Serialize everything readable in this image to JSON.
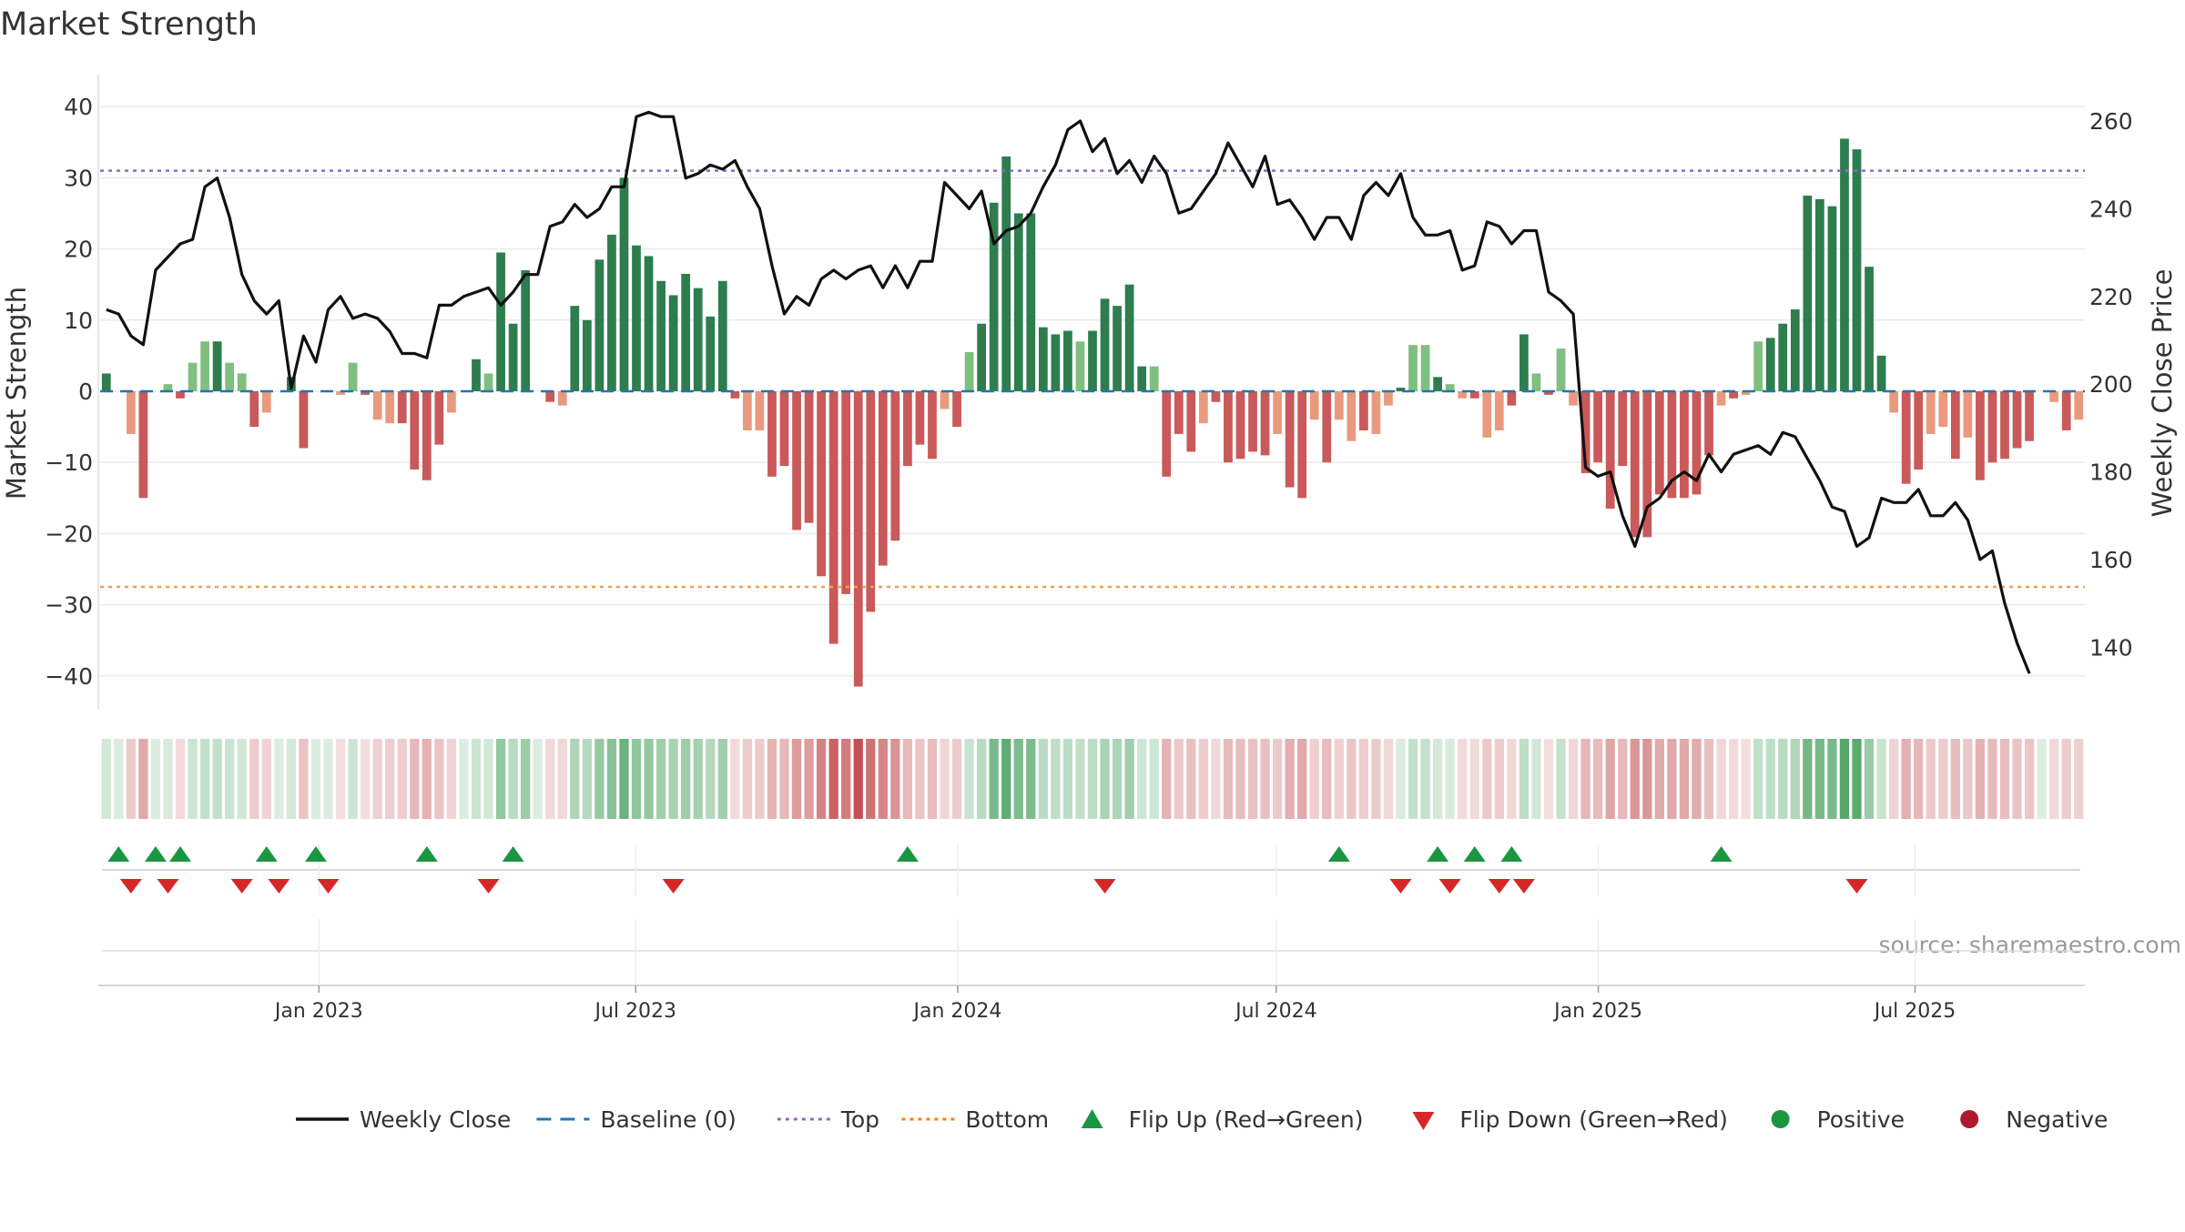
{
  "chart_data": {
    "title": "Market Strength",
    "type": "bar+line",
    "source": "source: sharemaestro.com",
    "y_left": {
      "label": "Market Strength",
      "range": [
        -45,
        45
      ],
      "ticks": [
        40,
        30,
        20,
        10,
        0,
        -10,
        -20,
        -30,
        -40
      ],
      "tick_labels": [
        "40",
        "30",
        "20",
        "10",
        "0",
        "−10",
        "−20",
        "−30",
        "−40"
      ]
    },
    "y_right": {
      "label": "Weekly Close Price",
      "range": [
        130,
        263
      ],
      "ticks": [
        260,
        240,
        220,
        200,
        180,
        160,
        140
      ],
      "tick_labels": [
        "260",
        "240",
        "220",
        "200",
        "180",
        "160",
        "140"
      ]
    },
    "x_axis": {
      "start": "2022-08-29",
      "end": "2025-10-06",
      "ticks": [
        {
          "date": "2023-01-01",
          "label": "Jan 2023"
        },
        {
          "date": "2023-07-01",
          "label": "Jul 2023"
        },
        {
          "date": "2024-01-01",
          "label": "Jan 2024"
        },
        {
          "date": "2024-07-01",
          "label": "Jul 2024"
        },
        {
          "date": "2025-01-01",
          "label": "Jan 2025"
        },
        {
          "date": "2025-07-01",
          "label": "Jul 2025"
        }
      ]
    },
    "thresholds": {
      "top": 31,
      "bottom": -27.5,
      "baseline": 0
    },
    "series": [
      {
        "name": "Weekly Close",
        "type": "line",
        "color": "#111111",
        "values": [
          217,
          216,
          211,
          209,
          226,
          229,
          232,
          233,
          245,
          247,
          238,
          225,
          219,
          216,
          219,
          199,
          211,
          205,
          217,
          220,
          215,
          216,
          215,
          212,
          207,
          207,
          206,
          218,
          218,
          220,
          221,
          222,
          218,
          221,
          225,
          225,
          236,
          237,
          241,
          238,
          240,
          245,
          245,
          261,
          262,
          261,
          261,
          247,
          248,
          250,
          249,
          251,
          245,
          240,
          227,
          216,
          220,
          218,
          224,
          226,
          224,
          226,
          227,
          222,
          227,
          222,
          228,
          228,
          246,
          243,
          240,
          244,
          232,
          235,
          236,
          239,
          245,
          250,
          258,
          260,
          253,
          256,
          248,
          251,
          246,
          252,
          248,
          239,
          240,
          244,
          248,
          255,
          250,
          245,
          252,
          241,
          242,
          238,
          233,
          238,
          238,
          233,
          243,
          246,
          243,
          248,
          238,
          234,
          234,
          235,
          226,
          227,
          237,
          236,
          232,
          235,
          235,
          221,
          219,
          216,
          181,
          179,
          180,
          170,
          163,
          172,
          174,
          178,
          180,
          178,
          184,
          180,
          184,
          185,
          186,
          184,
          189,
          188,
          183,
          178,
          172,
          171,
          163,
          165,
          174,
          173,
          173,
          176,
          170,
          170,
          173,
          169,
          160,
          162,
          150,
          141,
          134
        ]
      },
      {
        "name": "Market Strength",
        "type": "bar",
        "values": [
          2.5,
          0,
          -6,
          -15,
          0,
          1,
          -1,
          4,
          7,
          7,
          4,
          2.5,
          -5,
          -3,
          0,
          2,
          -8,
          0,
          0,
          -0.5,
          4,
          -0.5,
          -4,
          -4.5,
          -4.5,
          -11,
          -12.5,
          -7.5,
          -3,
          0,
          4.5,
          2.5,
          19.5,
          9.5,
          17,
          0,
          -1.5,
          -2,
          12,
          10,
          18.5,
          22,
          30,
          20.5,
          19,
          15.5,
          13.5,
          16.5,
          14.5,
          10.5,
          15.5,
          -1,
          -5.5,
          -5.5,
          -12,
          -10.5,
          -19.5,
          -18.5,
          -26,
          -35.5,
          -28.5,
          -41.5,
          -31,
          -24.5,
          -21,
          -10.5,
          -7.5,
          -9.5,
          -2.5,
          -5,
          5.5,
          9.5,
          26.5,
          33,
          25,
          25,
          9,
          8,
          8.5,
          7,
          8.5,
          13,
          12,
          15,
          3.5,
          3.5,
          -12,
          -6,
          -8.5,
          -4.5,
          -1.5,
          -10,
          -9.5,
          -8.5,
          -9,
          -6,
          -13.5,
          -15,
          -4,
          -10,
          -4,
          -7,
          -5.5,
          -6,
          -2,
          0.5,
          6.5,
          6.5,
          2,
          1,
          -1,
          -1,
          -6.5,
          -5.5,
          -2,
          8,
          2.5,
          -0.5,
          6,
          -2,
          -11.5,
          -10,
          -16.5,
          -10.5,
          -20.5,
          -20.5,
          -14.5,
          -15,
          -15,
          -14.5,
          -9,
          -2,
          -1,
          -0.5,
          7,
          7.5,
          9.5,
          11.5,
          27.5,
          27,
          26,
          35.5,
          34,
          17.5,
          5,
          -3,
          -13,
          -11,
          -6,
          -5,
          -9.5,
          -6.5,
          -12.5,
          -10,
          -9.5,
          -8,
          -7,
          0,
          -1.5,
          -5.5,
          -4
        ]
      }
    ],
    "flip_up_weeks": [
      1,
      4,
      6,
      13,
      17,
      26,
      33,
      65,
      100,
      108,
      111,
      114,
      131
    ],
    "flip_down_weeks": [
      2,
      5,
      11,
      14,
      18,
      31,
      46,
      81,
      105,
      109,
      113,
      115,
      142
    ],
    "legend": [
      {
        "label": "Weekly Close",
        "style": "solid",
        "color": "#111111"
      },
      {
        "label": "Baseline (0)",
        "style": "dashed",
        "color": "#1f77b4"
      },
      {
        "label": "Top",
        "style": "dotted",
        "color": "#9467bd"
      },
      {
        "label": "Bottom",
        "style": "dotted",
        "color": "#ff7f0e"
      },
      {
        "label": "Flip Up (Red→Green)",
        "style": "triangle-up",
        "color": "#1a9641"
      },
      {
        "label": "Flip Down (Green→Red)",
        "style": "triangle-down",
        "color": "#d62728"
      },
      {
        "label": "Positive",
        "style": "circle",
        "color": "#1a9641"
      },
      {
        "label": "Negative",
        "style": "circle",
        "color": "#b2182b"
      }
    ],
    "colors": {
      "positive_strong": "#2e7d4f",
      "positive_light": "#7fbf7f",
      "negative_strong": "#c9595a",
      "negative_light": "#e99a7e",
      "strip_positive": "#3a9a52",
      "strip_negative": "#c0484a",
      "grid": "#e8e8e8",
      "axis_text": "#333333"
    }
  }
}
